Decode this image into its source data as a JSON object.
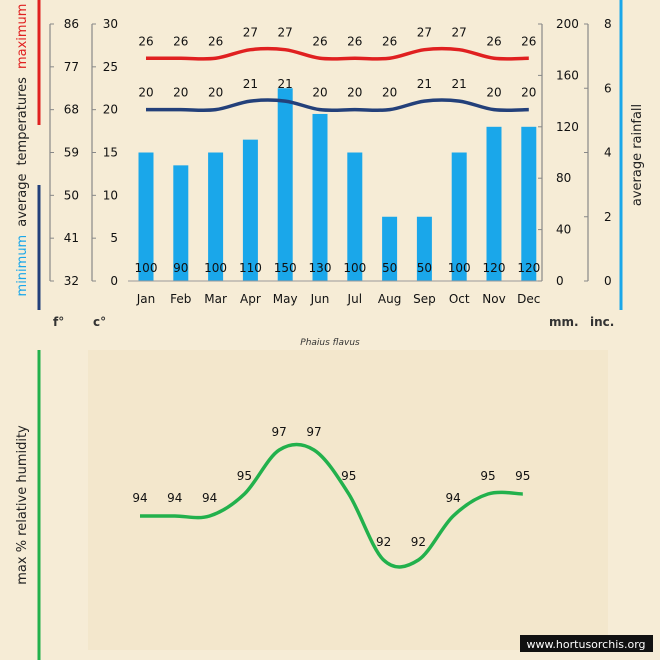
{
  "chart_data": [
    {
      "type": "bar+line",
      "title": "",
      "categories": [
        "Jan",
        "Feb",
        "Mar",
        "Apr",
        "May",
        "Jun",
        "Jul",
        "Aug",
        "Sep",
        "Oct",
        "Nov",
        "Dec"
      ],
      "rainfall": {
        "name": "average rainfall (mm)",
        "values": [
          100,
          90,
          100,
          110,
          150,
          130,
          100,
          50,
          50,
          100,
          120,
          120
        ],
        "labels": [
          "100",
          "90",
          "100",
          "110",
          "150",
          "130",
          "100",
          "50",
          "50",
          "100",
          "120",
          "120"
        ]
      },
      "max_temp": {
        "name": "maximum",
        "values": [
          26,
          26,
          26,
          27,
          27,
          26,
          26,
          26,
          27,
          27,
          26,
          26
        ],
        "labels": [
          "26",
          "26",
          "26",
          "27",
          "27",
          "26",
          "26",
          "26",
          "27",
          "27",
          "26",
          "26"
        ]
      },
      "min_temp": {
        "name": "minimum",
        "values": [
          20,
          20,
          20,
          21,
          21,
          20,
          20,
          20,
          21,
          21,
          20,
          20
        ],
        "labels": [
          "20",
          "20",
          "20",
          "21",
          "21",
          "20",
          "20",
          "20",
          "21",
          "21",
          "20",
          "20"
        ]
      },
      "celsius_ticks": [
        "0",
        "5",
        "10",
        "15",
        "20",
        "25",
        "30"
      ],
      "fahrenheit_ticks": [
        "32",
        "41",
        "50",
        "59",
        "68",
        "77",
        "86"
      ],
      "mm_ticks": [
        "0",
        "40",
        "80",
        "120",
        "160",
        "200"
      ],
      "inch_ticks": [
        "0",
        "2",
        "4",
        "6",
        "8"
      ],
      "ylim_c": [
        0,
        30
      ],
      "ylim_mm": [
        0,
        200
      ],
      "left_label": {
        "minimum": "minimum",
        "average": "average",
        "temperatures": "temperatures",
        "maximum": "maximum"
      },
      "right_label": "average rainfall",
      "unit_f": "f°",
      "unit_c": "c°",
      "unit_mm": "mm.",
      "unit_inc": "inc.",
      "species": "Phaius flavus",
      "colors": {
        "max": "#e02020",
        "min": "#23407a",
        "bars": "#1aa7ea",
        "left_axis_red": "#e02020",
        "left_axis_blue": "#23407a",
        "right_axis": "#1aa7ea"
      }
    },
    {
      "type": "line",
      "categories": [
        "Jan",
        "Feb",
        "Mar",
        "Apr",
        "May",
        "Jun",
        "Jul",
        "Aug",
        "Sep",
        "Oct",
        "Nov",
        "Dec"
      ],
      "series": [
        {
          "name": "max % relative humidity",
          "values": [
            94,
            94,
            94,
            95,
            97,
            97,
            95,
            92,
            92,
            94,
            95,
            95
          ],
          "labels": [
            "94",
            "94",
            "94",
            "95",
            "97",
            "97",
            "95",
            "92",
            "92",
            "94",
            "95",
            "95"
          ]
        }
      ],
      "ylabel": "max  %  relative humidity",
      "color": "#22b14c"
    }
  ],
  "watermark": "www.hortusorchis.org"
}
